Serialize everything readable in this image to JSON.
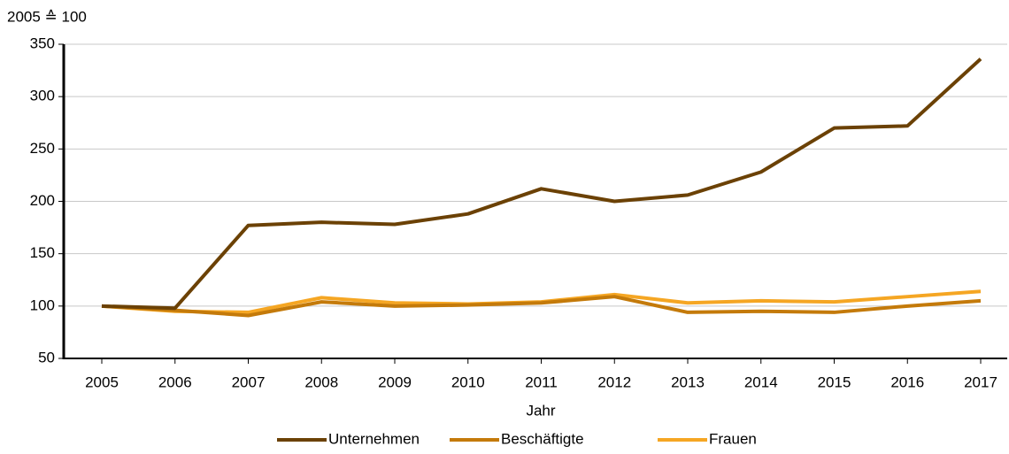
{
  "chart_data": {
    "type": "line",
    "y_label": "2005 ≙ 100",
    "x_label": "Jahr",
    "categories": [
      "2005",
      "2006",
      "2007",
      "2008",
      "2009",
      "2010",
      "2011",
      "2012",
      "2013",
      "2014",
      "2015",
      "2016",
      "2017"
    ],
    "series": [
      {
        "name": "Unternehmen",
        "color": "#6b4105",
        "values": [
          100,
          98,
          177,
          180,
          178,
          188,
          212,
          200,
          206,
          228,
          270,
          272,
          336
        ]
      },
      {
        "name": "Beschäftigte",
        "color": "#c47a0a",
        "values": [
          100,
          96,
          91,
          104,
          100,
          101,
          103,
          109,
          94,
          95,
          94,
          100,
          105
        ]
      },
      {
        "name": "Frauen",
        "color": "#f5a623",
        "values": [
          100,
          95,
          94,
          108,
          103,
          102,
          104,
          111,
          103,
          105,
          104,
          109,
          114
        ]
      }
    ],
    "ylim": [
      50,
      350
    ],
    "yticks": [
      50,
      100,
      150,
      200,
      250,
      300,
      350
    ],
    "grid": true,
    "legend": "bottom"
  }
}
